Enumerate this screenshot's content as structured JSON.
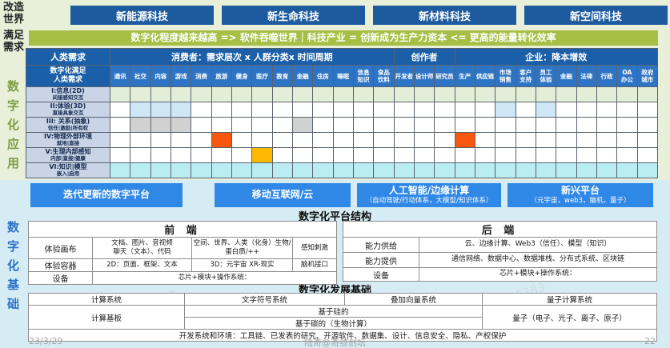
{
  "watermark_text": "访客 46283",
  "side_labels": {
    "transform_world": "改造世界",
    "satisfy_needs": "满足需求",
    "digital_application": "数字化应用",
    "digital_foundation": "数字化基础"
  },
  "top_buttons": [
    "新能源科技",
    "新生命科技",
    "新材料科技",
    "新空间科技"
  ],
  "banner": "数字化程度越来越高 => 软件吞噬世界｜科技产业 = 创新成为生产力资本 <= 更高的能量转化效率",
  "matrix": {
    "corner_top": "人类需求",
    "corner_bottom": "数字化满足\n人类需求",
    "groups": [
      {
        "label": "消费者：需求层次 x 人群分类x 时间周期",
        "span": 14
      },
      {
        "label": "创作者",
        "span": 3
      },
      {
        "label": "企业：降本增效",
        "span": 10
      }
    ],
    "columns": [
      "通讯",
      "社交",
      "内容",
      "游戏",
      "消费",
      "旅游",
      "健身",
      "医疗",
      "教育",
      "金融",
      "住房",
      "睡眠",
      "信息\n知识",
      "食品\n饮料",
      "开发者",
      "设计师",
      "研究员",
      "生产",
      "供应链",
      "市场\n销售",
      "客户\n支持",
      "员工\n体验",
      "金融",
      "法律",
      "行政",
      "OA\n办公",
      "政府\n城市"
    ],
    "cell_colors": {
      "white": "#ffffff",
      "green": "#e3eed8",
      "cyan": "#baecf4",
      "blue": "#cde7f7",
      "gray": "#d1d1d1",
      "orange": "#f9560f",
      "yellow": "#fdba00"
    },
    "rows": [
      {
        "title": "I:信息(2D)",
        "subtitle": "间接感知交互",
        "base": "green",
        "cells": {}
      },
      {
        "title": "II:体验(3D)",
        "subtitle": "直接具象交互",
        "base": "white",
        "cells": {
          "1": "blue",
          "2": "blue",
          "3": "blue",
          "19": "blue",
          "21": "blue"
        }
      },
      {
        "title": "III: 关系(抽象)",
        "subtitle": "信任|激励|所有权",
        "base": "white",
        "cells": {
          "1": "gray",
          "2": "gray",
          "3": "gray",
          "9": "gray"
        }
      },
      {
        "title": "IV:物理外部环境",
        "subtitle": "就地|直接",
        "base": "white",
        "cells": {
          "5": "orange",
          "17": "orange"
        }
      },
      {
        "title": "V:生理内部感知",
        "subtitle": "内部|直接|健康",
        "base": "white",
        "cells": {
          "7": "yellow"
        }
      },
      {
        "title": "VI:知识|模型",
        "subtitle": "嵌入|启用",
        "base": "cyan",
        "cells": {}
      }
    ]
  },
  "platform_buttons": [
    {
      "label": "迭代更新的数字平台",
      "sub": ""
    },
    {
      "label": "移动互联网/云",
      "sub": ""
    },
    {
      "label": "人工智能/边缘计算",
      "sub": "（自动驾驶/行动体系，大模型/知识体系）"
    },
    {
      "label": "新兴平台",
      "sub": "（元宇宙，web3，脑机，量子）"
    }
  ],
  "platform_structure_title": "数字化平台结构",
  "front_panel": {
    "title": "前 端",
    "rows": [
      {
        "label": "体验画布",
        "c1": "文档、图片、音视频\n聊天（文本）、代码",
        "c2": "空间、世界、人类（化身）生物/\n蛋白质/++",
        "c3": "感知刺激"
      },
      {
        "label": "体验容器",
        "c1": "2D：页面、框架、文本",
        "c2": "3D：元宇宙 XR-现实",
        "c3": "脑机接口"
      },
      {
        "label": "设备",
        "span": "芯片+模块+操作系统："
      }
    ]
  },
  "back_panel": {
    "title": "后 端",
    "rows": [
      {
        "label": "能力供给",
        "content": "云、边缘计算、Web3（信任）、模型（知识）"
      },
      {
        "label": "能力提供",
        "content": "通信网络、数据中心、数据堆栈、分布式系统、区块链"
      },
      {
        "label": "设备",
        "content": "芯片+模块+操作系统："
      }
    ]
  },
  "foundation": {
    "title": "数字化发展基础",
    "row1": [
      "计算系统",
      "文字符号系统",
      "叠加向量系统",
      "量子计算系统"
    ],
    "row2_label": "计算基板",
    "row2_mid": [
      "基于硅的",
      "基于碳的（生物计算）"
    ],
    "row2_right": "量子（电子、光子、离子、原子）",
    "row3": "开发系统和环境：工具链、已发表的研究、开源软件、数据集、设计、信息安全、隐私、产权保护"
  },
  "footer": {
    "date": "23/3/29",
    "author": "陆奇@奇绩创坛",
    "page": "22"
  }
}
